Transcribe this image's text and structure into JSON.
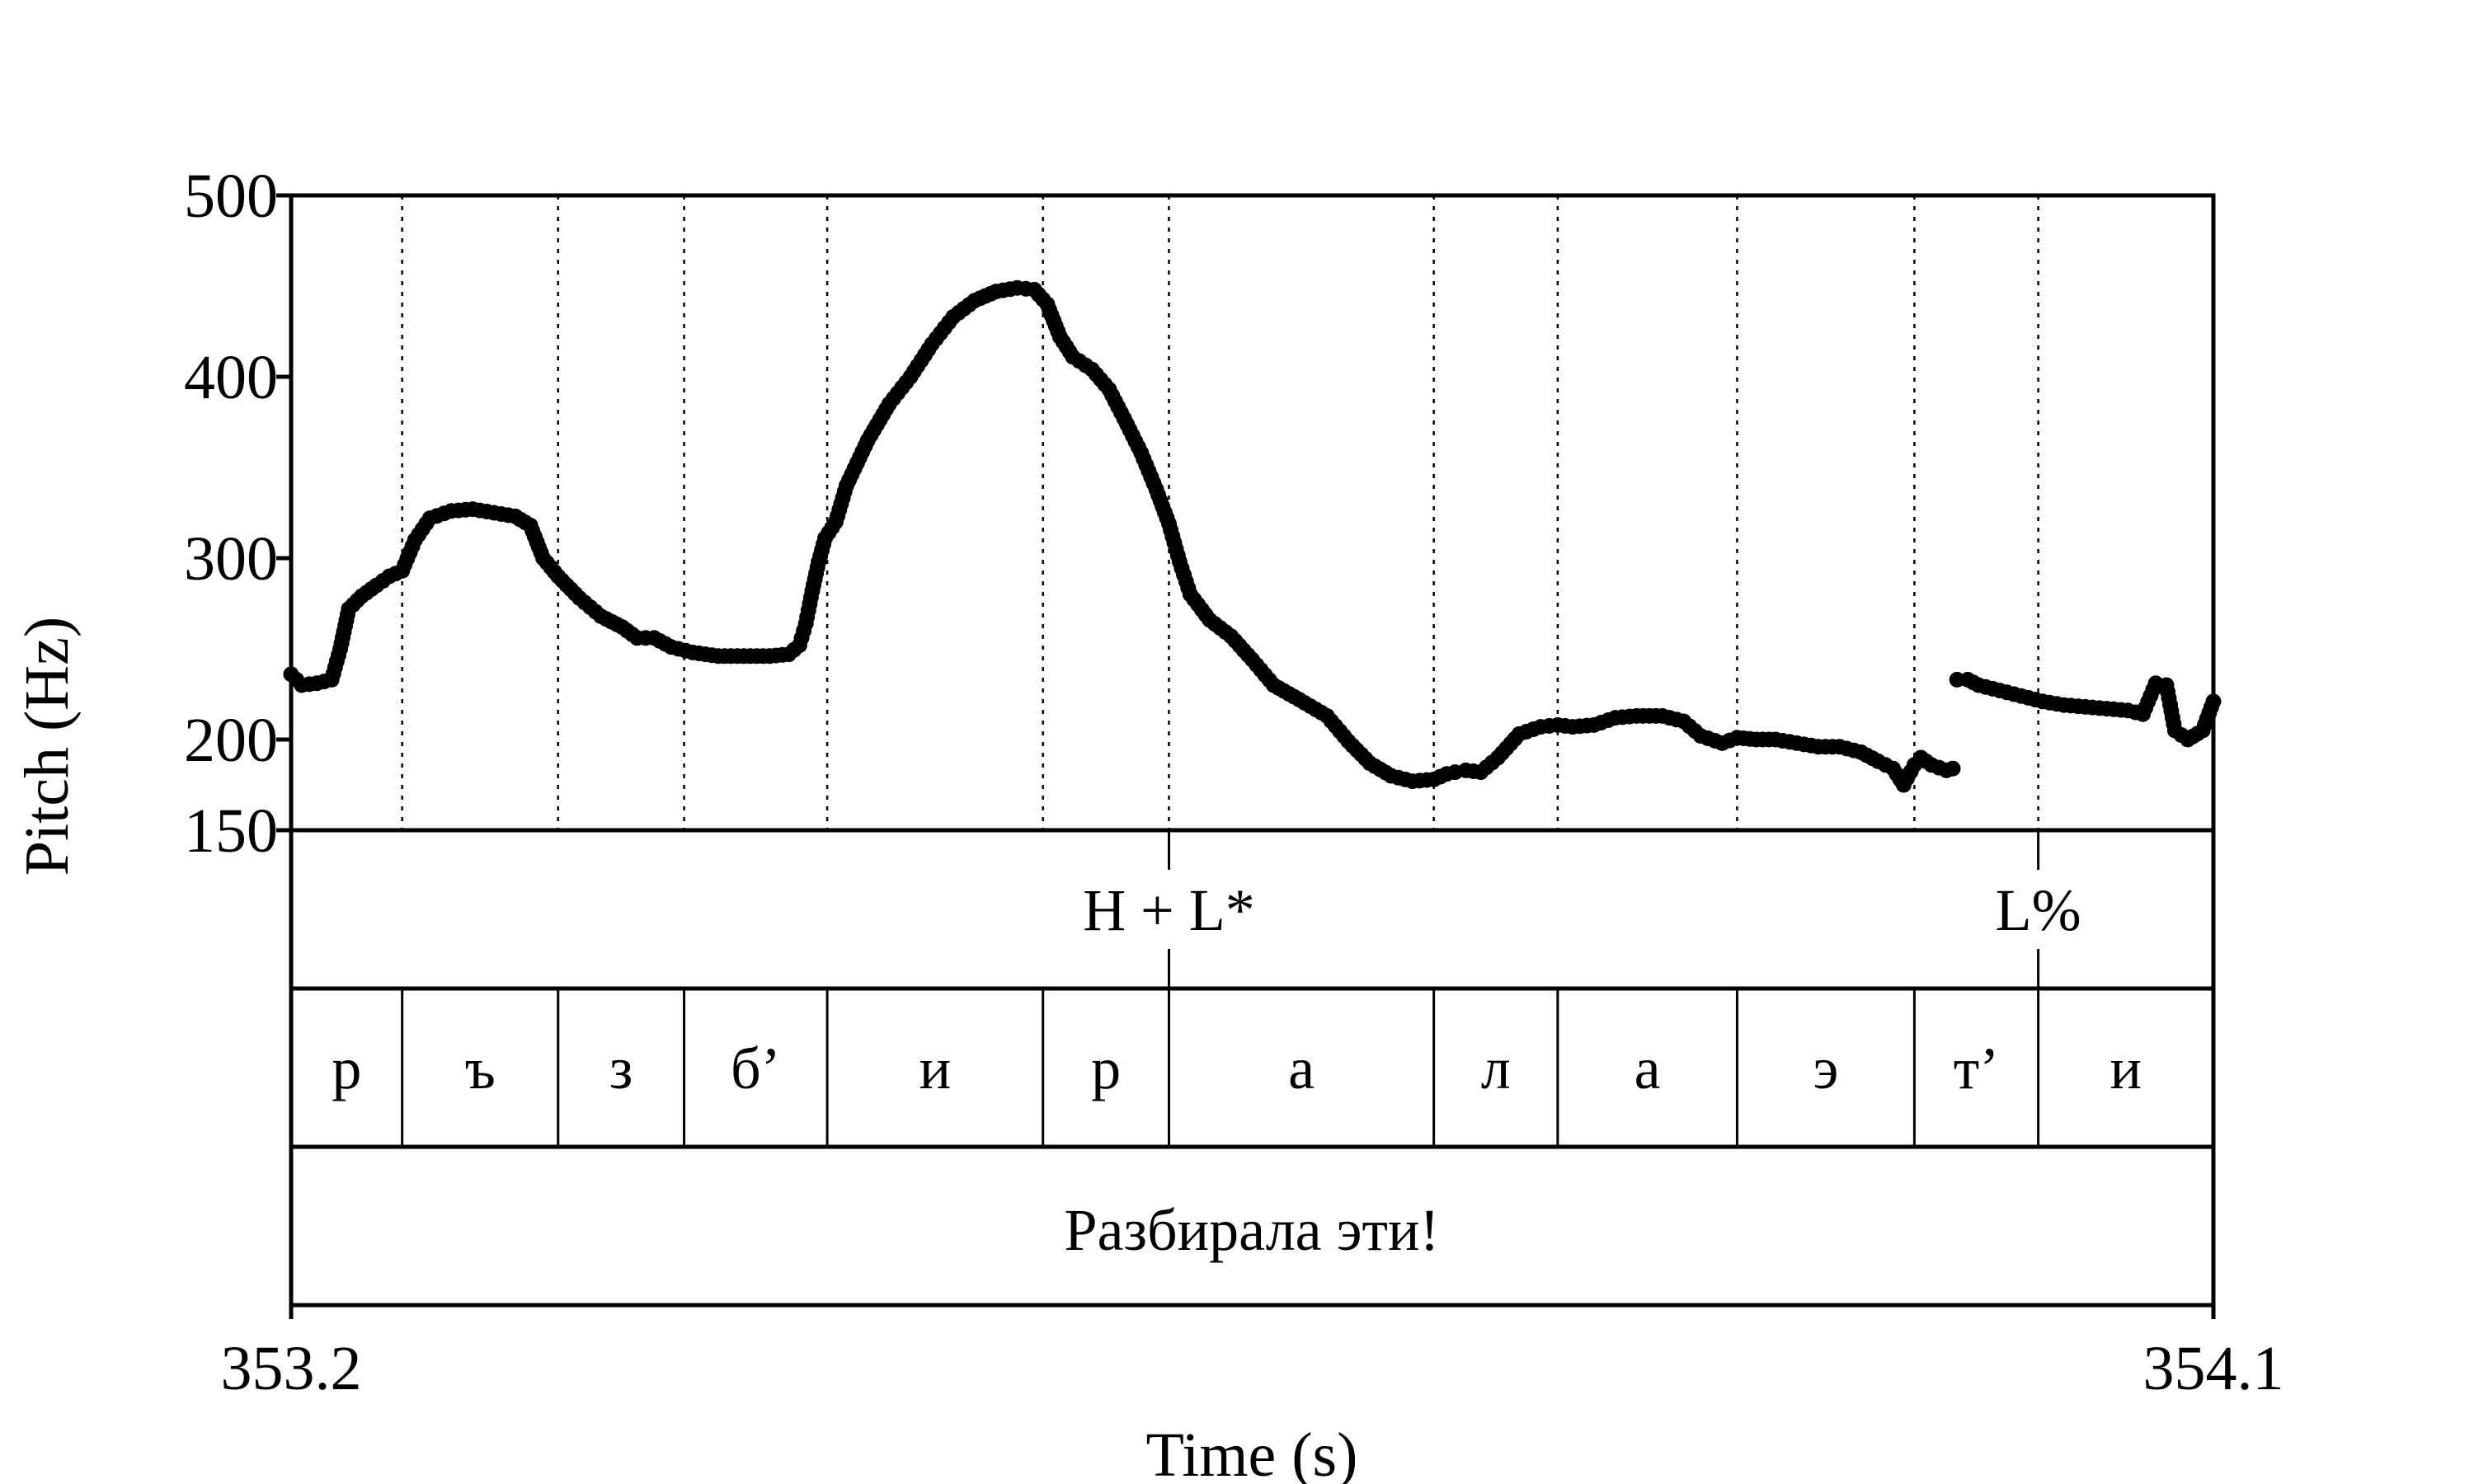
{
  "chart_data": {
    "type": "scatter",
    "ylabel": "Pitch (Hz)",
    "xlabel": "Time (s)",
    "xlim": [
      353.2,
      354.1
    ],
    "ylim": [
      150,
      500
    ],
    "x_tick_labels": [
      "353.2",
      "354.1"
    ],
    "y_tick_labels": [
      "500",
      "400",
      "300",
      "200",
      "150"
    ],
    "y_ticks": [
      500,
      400,
      300,
      200,
      150
    ],
    "grid": "vertical dotted lines at segment boundaries",
    "marker_color": "#000000",
    "segment_boundaries": [
      353.252,
      353.325,
      353.384,
      353.451,
      353.552,
      353.611,
      353.735,
      353.793,
      353.877,
      353.96,
      354.018
    ],
    "tones": [
      {
        "label": "H + L*",
        "time": 353.611
      },
      {
        "label": "L%",
        "time": 354.018
      }
    ],
    "segments": [
      {
        "label": "р",
        "start": 353.2,
        "end": 353.252
      },
      {
        "label": "ъ",
        "start": 353.252,
        "end": 353.325
      },
      {
        "label": "з",
        "start": 353.325,
        "end": 353.384
      },
      {
        "label": "б’",
        "start": 353.384,
        "end": 353.451
      },
      {
        "label": "и",
        "start": 353.451,
        "end": 353.552
      },
      {
        "label": "р",
        "start": 353.552,
        "end": 353.611
      },
      {
        "label": "а",
        "start": 353.611,
        "end": 353.735
      },
      {
        "label": "л",
        "start": 353.735,
        "end": 353.793
      },
      {
        "label": "а",
        "start": 353.793,
        "end": 353.877
      },
      {
        "label": "э",
        "start": 353.877,
        "end": 353.96
      },
      {
        "label": "т’",
        "start": 353.96,
        "end": 354.018
      },
      {
        "label": "и",
        "start": 354.018,
        "end": 354.1
      }
    ],
    "sentence": "Разбирала эти!",
    "series": [
      {
        "values": [
          [
            353.2,
            236
          ],
          [
            353.205,
            230
          ],
          [
            353.212,
            231
          ],
          [
            353.219,
            233
          ],
          [
            353.223,
            250
          ],
          [
            353.227,
            272
          ],
          [
            353.233,
            279
          ],
          [
            353.24,
            285
          ],
          [
            353.246,
            290
          ],
          [
            353.252,
            293
          ],
          [
            353.258,
            310
          ],
          [
            353.265,
            322
          ],
          [
            353.275,
            326
          ],
          [
            353.285,
            327
          ],
          [
            353.295,
            325
          ],
          [
            353.305,
            323
          ],
          [
            353.312,
            318
          ],
          [
            353.318,
            300
          ],
          [
            353.325,
            290
          ],
          [
            353.335,
            278
          ],
          [
            353.345,
            268
          ],
          [
            353.355,
            262
          ],
          [
            353.362,
            256
          ],
          [
            353.37,
            256
          ],
          [
            353.378,
            251
          ],
          [
            353.388,
            248
          ],
          [
            353.4,
            246
          ],
          [
            353.412,
            246
          ],
          [
            353.424,
            246
          ],
          [
            353.433,
            247
          ],
          [
            353.438,
            252
          ],
          [
            353.441,
            264
          ],
          [
            353.444,
            282
          ],
          [
            353.447,
            298
          ],
          [
            353.45,
            311
          ],
          [
            353.455,
            320
          ],
          [
            353.46,
            340
          ],
          [
            353.47,
            365
          ],
          [
            353.48,
            385
          ],
          [
            353.49,
            400
          ],
          [
            353.5,
            418
          ],
          [
            353.51,
            433
          ],
          [
            353.52,
            442
          ],
          [
            353.53,
            447
          ],
          [
            353.54,
            449
          ],
          [
            353.548,
            448
          ],
          [
            353.554,
            440
          ],
          [
            353.56,
            422
          ],
          [
            353.566,
            411
          ],
          [
            353.575,
            404
          ],
          [
            353.583,
            393
          ],
          [
            353.59,
            377
          ],
          [
            353.598,
            358
          ],
          [
            353.605,
            338
          ],
          [
            353.611,
            319
          ],
          [
            353.616,
            298
          ],
          [
            353.621,
            280
          ],
          [
            353.63,
            266
          ],
          [
            353.64,
            257
          ],
          [
            353.65,
            244
          ],
          [
            353.66,
            230
          ],
          [
            353.672,
            222
          ],
          [
            353.685,
            213
          ],
          [
            353.695,
            199
          ],
          [
            353.705,
            187
          ],
          [
            353.715,
            180
          ],
          [
            353.725,
            177
          ],
          [
            353.735,
            178
          ],
          [
            353.741,
            181
          ],
          [
            353.745,
            182
          ],
          [
            353.75,
            183
          ],
          [
            353.757,
            182
          ],
          [
            353.765,
            190
          ],
          [
            353.775,
            203
          ],
          [
            353.785,
            207
          ],
          [
            353.793,
            208
          ],
          [
            353.8,
            207
          ],
          [
            353.81,
            208
          ],
          [
            353.82,
            212
          ],
          [
            353.83,
            213
          ],
          [
            353.842,
            213
          ],
          [
            353.852,
            210
          ],
          [
            353.86,
            202
          ],
          [
            353.87,
            198
          ],
          [
            353.877,
            201
          ],
          [
            353.886,
            200
          ],
          [
            353.895,
            200
          ],
          [
            353.905,
            198
          ],
          [
            353.915,
            196
          ],
          [
            353.925,
            196
          ],
          [
            353.935,
            193
          ],
          [
            353.943,
            188
          ],
          [
            353.95,
            184
          ],
          [
            353.955,
            175
          ],
          [
            353.96,
            186
          ],
          [
            353.963,
            190
          ],
          [
            353.968,
            186
          ],
          [
            353.975,
            183
          ],
          [
            353.978,
            184
          ],
          [
            353.98,
            233
          ],
          [
            353.985,
            233
          ],
          [
            353.99,
            230
          ],
          [
            354.0,
            227
          ],
          [
            354.01,
            224
          ],
          [
            354.02,
            221
          ],
          [
            354.03,
            219
          ],
          [
            354.04,
            218
          ],
          [
            354.05,
            217
          ],
          [
            354.06,
            216
          ],
          [
            354.067,
            214
          ],
          [
            354.073,
            231
          ],
          [
            354.078,
            230
          ],
          [
            354.082,
            205
          ],
          [
            354.088,
            200
          ],
          [
            354.095,
            205
          ],
          [
            354.1,
            221
          ]
        ]
      }
    ]
  }
}
